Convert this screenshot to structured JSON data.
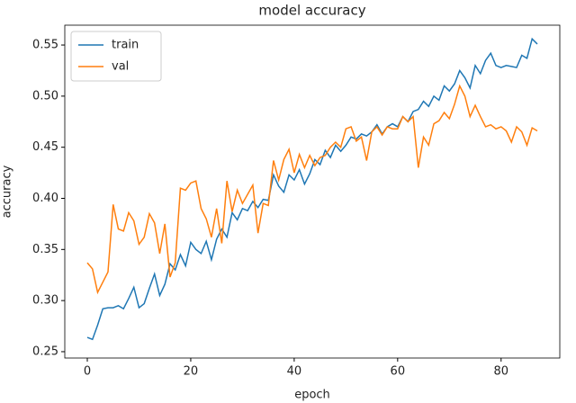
{
  "chart_data": {
    "type": "line",
    "title": "model accuracy",
    "xlabel": "epoch",
    "ylabel": "accuracy",
    "x": [
      0,
      1,
      2,
      3,
      4,
      5,
      6,
      7,
      8,
      9,
      10,
      11,
      12,
      13,
      14,
      15,
      16,
      17,
      18,
      19,
      20,
      21,
      22,
      23,
      24,
      25,
      26,
      27,
      28,
      29,
      30,
      31,
      32,
      33,
      34,
      35,
      36,
      37,
      38,
      39,
      40,
      41,
      42,
      43,
      44,
      45,
      46,
      47,
      48,
      49,
      50,
      51,
      52,
      53,
      54,
      55,
      56,
      57,
      58,
      59,
      60,
      61,
      62,
      63,
      64,
      65,
      66,
      67,
      68,
      69,
      70,
      71,
      72,
      73,
      74,
      75,
      76,
      77,
      78,
      79,
      80,
      81,
      82,
      83,
      84,
      85,
      86,
      87
    ],
    "series": [
      {
        "name": "train",
        "color": "#1f77b4",
        "values": [
          0.264,
          0.262,
          0.276,
          0.292,
          0.293,
          0.293,
          0.295,
          0.292,
          0.302,
          0.313,
          0.293,
          0.297,
          0.312,
          0.326,
          0.305,
          0.316,
          0.336,
          0.33,
          0.345,
          0.334,
          0.357,
          0.35,
          0.346,
          0.358,
          0.34,
          0.36,
          0.37,
          0.362,
          0.386,
          0.379,
          0.39,
          0.388,
          0.397,
          0.391,
          0.399,
          0.398,
          0.423,
          0.412,
          0.406,
          0.423,
          0.418,
          0.428,
          0.414,
          0.424,
          0.438,
          0.433,
          0.447,
          0.44,
          0.452,
          0.446,
          0.452,
          0.46,
          0.458,
          0.463,
          0.461,
          0.465,
          0.472,
          0.463,
          0.47,
          0.473,
          0.47,
          0.48,
          0.475,
          0.485,
          0.487,
          0.495,
          0.49,
          0.5,
          0.496,
          0.51,
          0.505,
          0.512,
          0.525,
          0.518,
          0.508,
          0.53,
          0.522,
          0.535,
          0.542,
          0.53,
          0.528,
          0.53,
          0.529,
          0.528,
          0.54,
          0.537,
          0.556,
          0.551
        ]
      },
      {
        "name": "val",
        "color": "#ff7f0e",
        "values": [
          0.337,
          0.331,
          0.308,
          0.318,
          0.328,
          0.394,
          0.37,
          0.368,
          0.386,
          0.378,
          0.355,
          0.362,
          0.385,
          0.376,
          0.346,
          0.375,
          0.323,
          0.337,
          0.41,
          0.408,
          0.415,
          0.417,
          0.39,
          0.38,
          0.362,
          0.39,
          0.356,
          0.417,
          0.387,
          0.408,
          0.395,
          0.404,
          0.413,
          0.366,
          0.395,
          0.393,
          0.437,
          0.418,
          0.438,
          0.448,
          0.425,
          0.443,
          0.43,
          0.442,
          0.432,
          0.44,
          0.442,
          0.45,
          0.455,
          0.45,
          0.468,
          0.47,
          0.456,
          0.46,
          0.437,
          0.465,
          0.47,
          0.462,
          0.47,
          0.468,
          0.468,
          0.48,
          0.475,
          0.48,
          0.43,
          0.46,
          0.452,
          0.473,
          0.476,
          0.484,
          0.478,
          0.492,
          0.51,
          0.5,
          0.48,
          0.491,
          0.48,
          0.47,
          0.472,
          0.468,
          0.47,
          0.466,
          0.455,
          0.47,
          0.465,
          0.452,
          0.469,
          0.466
        ]
      }
    ],
    "xlim": [
      -4.35,
      91.35
    ],
    "xticks": [
      0,
      20,
      40,
      60,
      80
    ],
    "ylim": [
      0.2438,
      0.5694
    ],
    "yticks": [
      0.25,
      {
        "value": 0.3,
        "label": "0.30"
      },
      0.35,
      {
        "value": 0.4,
        "label": "0.40"
      },
      0.45,
      {
        "value": 0.5,
        "label": "0.50"
      },
      0.55
    ],
    "legend": "upper left"
  }
}
